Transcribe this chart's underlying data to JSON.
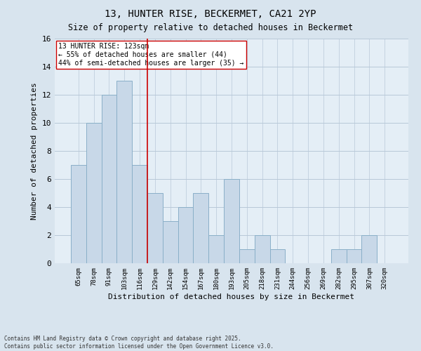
{
  "title_line1": "13, HUNTER RISE, BECKERMET, CA21 2YP",
  "title_line2": "Size of property relative to detached houses in Beckermet",
  "xlabel": "Distribution of detached houses by size in Beckermet",
  "ylabel": "Number of detached properties",
  "bar_labels": [
    "65sqm",
    "78sqm",
    "91sqm",
    "103sqm",
    "116sqm",
    "129sqm",
    "142sqm",
    "154sqm",
    "167sqm",
    "180sqm",
    "193sqm",
    "205sqm",
    "218sqm",
    "231sqm",
    "244sqm",
    "256sqm",
    "269sqm",
    "282sqm",
    "295sqm",
    "307sqm",
    "320sqm"
  ],
  "bar_values": [
    7,
    10,
    12,
    13,
    7,
    5,
    3,
    4,
    5,
    2,
    6,
    1,
    2,
    1,
    0,
    0,
    0,
    1,
    1,
    2,
    0
  ],
  "bar_color": "#c8d8e8",
  "bar_edge_color": "#8aafc8",
  "vline_x": 4.5,
  "vline_color": "#cc0000",
  "annotation_text": "13 HUNTER RISE: 123sqm\n← 55% of detached houses are smaller (44)\n44% of semi-detached houses are larger (35) →",
  "annotation_box_color": "#ffffff",
  "annotation_box_edge": "#cc0000",
  "annotation_fontsize": 7,
  "grid_color": "#b8c8d8",
  "background_color": "#d8e4ee",
  "plot_bg_color": "#e4eef6",
  "footer_text": "Contains HM Land Registry data © Crown copyright and database right 2025.\nContains public sector information licensed under the Open Government Licence v3.0.",
  "ylim": [
    0,
    16
  ],
  "yticks": [
    0,
    2,
    4,
    6,
    8,
    10,
    12,
    14,
    16
  ],
  "title_fontsize1": 10,
  "title_fontsize2": 8.5,
  "ylabel_fontsize": 8,
  "xlabel_fontsize": 8,
  "xtick_fontsize": 6.5,
  "ytick_fontsize": 8
}
